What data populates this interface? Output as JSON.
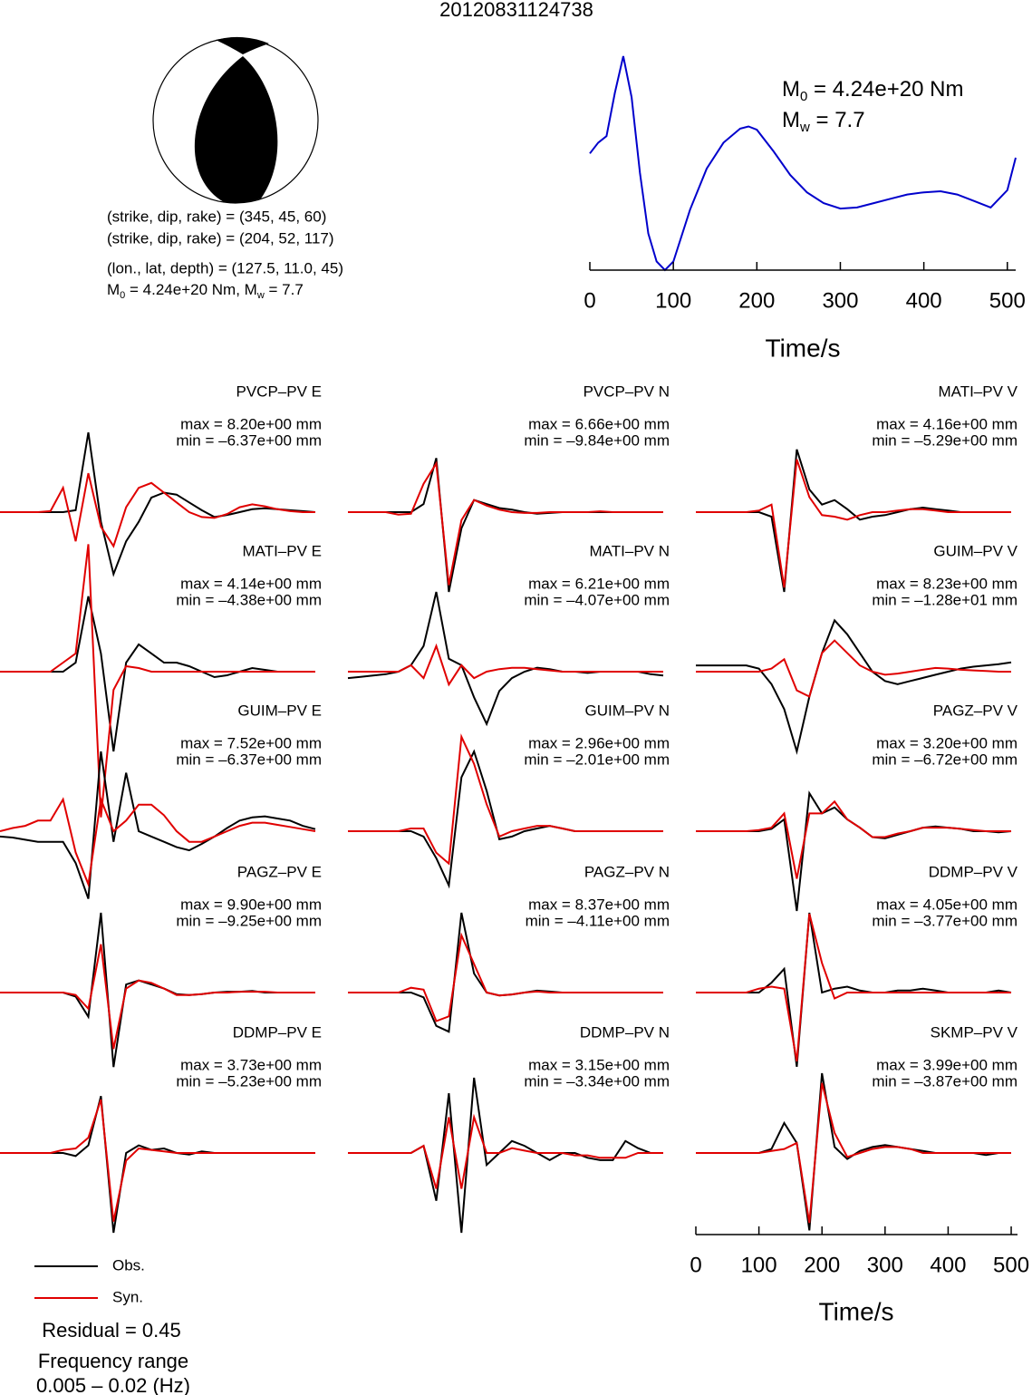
{
  "title": "20120831124738",
  "mechanism": {
    "plane1": "(strike, dip, rake) = (345, 45, 60)",
    "plane2": "(strike, dip, rake) = (204, 52, 117)",
    "location": "(lon., lat, depth) = (127.5, 11.0, 45)",
    "moment_symbol": "M",
    "moment_subscript": "0",
    "moment_value": " = 4.24e+20 Nm",
    "separator": ", ",
    "magnitude_symbol": "M",
    "magnitude_subscript": "w",
    "magnitude_value": " = 7.7"
  },
  "chart_data": [
    {
      "type": "line",
      "color": "#0000cc",
      "xlabel": "Time/s",
      "xlim": [
        0,
        510
      ],
      "xticks": [
        0,
        100,
        200,
        300,
        400,
        500
      ],
      "x": [
        0,
        10,
        20,
        30,
        40,
        50,
        60,
        70,
        80,
        90,
        100,
        120,
        140,
        160,
        180,
        190,
        200,
        220,
        240,
        260,
        280,
        300,
        320,
        340,
        360,
        380,
        400,
        420,
        440,
        460,
        480,
        500,
        510
      ],
      "values": [
        0.54,
        0.59,
        0.62,
        0.82,
        0.99,
        0.8,
        0.45,
        0.17,
        0.04,
        0,
        0.04,
        0.28,
        0.47,
        0.59,
        0.655,
        0.665,
        0.65,
        0.55,
        0.44,
        0.36,
        0.31,
        0.285,
        0.29,
        0.31,
        0.33,
        0.35,
        0.36,
        0.365,
        0.35,
        0.32,
        0.29,
        0.37,
        0.52
      ]
    },
    {
      "type": "waveform",
      "xlabel": "Time/s",
      "xlim": [
        0,
        510
      ],
      "xticks": [
        0,
        100,
        200,
        300,
        400,
        500
      ],
      "x": [
        0,
        20,
        40,
        60,
        80,
        100,
        120,
        140,
        160,
        180,
        200,
        220,
        240,
        260,
        280,
        300,
        320,
        340,
        360,
        380,
        400,
        420,
        440,
        460,
        480,
        500
      ],
      "legend": [
        {
          "name": "Obs.",
          "color": "#000000"
        },
        {
          "name": "Syn.",
          "color": "#e00000"
        }
      ],
      "residual": "Residual = 0.45",
      "frequency_title": "Frequency range",
      "frequency_range": "0.005 – 0.02 (Hz)",
      "panels": [
        {
          "station": "PVCP–PV E",
          "max_label": "max = 8.20e+00 mm",
          "min_label": "min = –6.37e+00 mm",
          "obs": [
            0,
            0,
            0,
            0,
            0,
            0,
            0.2,
            8.2,
            -1,
            -6.37,
            -3,
            -1,
            1.5,
            2,
            1.8,
            1,
            0.2,
            -0.5,
            -0.3,
            0,
            0.3,
            0.4,
            0.3,
            0.2,
            0.1,
            0
          ],
          "syn": [
            0,
            0,
            0,
            0,
            0.1,
            2.5,
            -3,
            4,
            -1.5,
            -3.5,
            0.5,
            2.5,
            3,
            2,
            1,
            0,
            -0.5,
            -0.6,
            -0.2,
            0.5,
            0.8,
            0.6,
            0.3,
            0.1,
            0,
            0
          ]
        },
        {
          "station": "MATI–PV E",
          "max_label": "max = 4.14e+00 mm",
          "min_label": "min = –4.38e+00 mm",
          "obs": [
            0,
            0,
            0,
            0,
            0,
            0,
            0.5,
            4.14,
            1,
            -4.38,
            0.5,
            1.5,
            1,
            0.5,
            0.5,
            0.3,
            0,
            -0.3,
            -0.2,
            0,
            0.2,
            0.1,
            0,
            0,
            0,
            0
          ],
          "syn": [
            0,
            0,
            0,
            0,
            0,
            0.5,
            1,
            7,
            -8,
            -1,
            0.3,
            0.2,
            0,
            0,
            0,
            0,
            0,
            0,
            0,
            0,
            0,
            0,
            0,
            0,
            0,
            0
          ]
        },
        {
          "station": "GUIM–PV E",
          "max_label": "max = 7.52e+00 mm",
          "min_label": "min = –6.37e+00 mm",
          "obs": [
            -0.5,
            -0.6,
            -0.8,
            -1,
            -1,
            -1,
            -3,
            -6.37,
            7.52,
            -1,
            5.5,
            0,
            -0.5,
            -1,
            -1.5,
            -1.8,
            -1.2,
            -0.5,
            0.3,
            1,
            1.3,
            1.4,
            1.2,
            1,
            0.5,
            0.2
          ],
          "syn": [
            0,
            0.3,
            0.5,
            1,
            1,
            3,
            -2,
            -5,
            3,
            0,
            1,
            2.5,
            2.5,
            1.5,
            0,
            -1,
            -1,
            -0.5,
            0,
            0.5,
            0.8,
            0.8,
            0.6,
            0.4,
            0.2,
            0
          ]
        },
        {
          "station": "PAGZ–PV E",
          "max_label": "max = 9.90e+00 mm",
          "min_label": "min = –9.25e+00 mm",
          "obs": [
            0,
            0,
            0,
            0,
            0,
            0,
            -0.5,
            -3,
            9.9,
            -9.25,
            1,
            1.5,
            1,
            0.5,
            -0.2,
            -0.3,
            -0.2,
            0,
            0.1,
            0.1,
            0.2,
            0,
            0,
            0,
            0,
            0
          ],
          "syn": [
            0,
            0,
            0,
            0,
            0,
            0,
            -0.3,
            -2,
            6,
            -7,
            0.5,
            1.5,
            1.2,
            0.5,
            -0.3,
            -0.3,
            -0.2,
            0,
            0,
            0.1,
            0.1,
            0.1,
            0,
            0,
            0,
            0
          ]
        },
        {
          "station": "DDMP–PV E",
          "max_label": "max = 3.73e+00 mm",
          "min_label": "min = –5.23e+00 mm",
          "obs": [
            0,
            0,
            0,
            0,
            0,
            0,
            -0.2,
            0.5,
            3.73,
            -5.23,
            0,
            0.5,
            0.2,
            0.3,
            0,
            -0.1,
            0.1,
            0,
            0,
            0,
            0,
            0,
            0,
            0,
            0,
            0
          ],
          "syn": [
            0,
            0,
            0,
            0,
            0,
            0.2,
            0.3,
            1,
            3.5,
            -4.5,
            -0.5,
            0.3,
            0.2,
            0.1,
            0,
            0,
            0,
            0,
            0,
            0,
            0,
            0,
            0,
            0,
            0,
            0
          ]
        },
        {
          "station": "PVCP–PV N",
          "max_label": "max = 6.66e+00 mm",
          "min_label": "min = –9.84e+00 mm",
          "obs": [
            0,
            0,
            0,
            0,
            0,
            0,
            1,
            6.66,
            -9.84,
            -2,
            1.5,
            1,
            0.5,
            0.3,
            0,
            -0.2,
            -0.1,
            0,
            0,
            0,
            0,
            0,
            0,
            0,
            0,
            0
          ],
          "syn": [
            0,
            0,
            0,
            0,
            -0.3,
            -0.2,
            3.5,
            6,
            -9,
            -1,
            1.5,
            0.8,
            0.3,
            0,
            -0.1,
            -0.1,
            0,
            0,
            0,
            0,
            0.1,
            0,
            0,
            0,
            0,
            0
          ]
        },
        {
          "station": "MATI–PV N",
          "max_label": "max = 6.21e+00 mm",
          "min_label": "min = –4.07e+00 mm",
          "obs": [
            -0.5,
            -0.4,
            -0.3,
            -0.2,
            0,
            0.5,
            2,
            6.21,
            1,
            0.5,
            -2,
            -4.07,
            -1.5,
            -0.5,
            0,
            0.3,
            0.2,
            0,
            0,
            -0.1,
            0,
            0,
            0,
            0,
            -0.2,
            -0.3
          ],
          "syn": [
            0,
            0,
            0,
            0,
            0,
            0.5,
            -0.5,
            2,
            -1,
            0.5,
            -0.5,
            0,
            0.2,
            0.3,
            0.3,
            0.2,
            0.1,
            0,
            0,
            0,
            0,
            0,
            0,
            0,
            0,
            0
          ]
        },
        {
          "station": "GUIM–PV N",
          "max_label": "max = 2.96e+00 mm",
          "min_label": "min = –2.01e+00 mm",
          "obs": [
            0,
            0,
            0,
            0,
            0,
            0,
            -0.2,
            -1,
            -2.01,
            2,
            2.96,
            1.5,
            -0.3,
            -0.2,
            0,
            0.1,
            0.2,
            0.1,
            0,
            0,
            0,
            0,
            0,
            0,
            0,
            0
          ],
          "syn": [
            0,
            0,
            0,
            0,
            0,
            0.1,
            0.1,
            -0.8,
            -1.2,
            3.5,
            2.5,
            1,
            -0.2,
            0,
            0.1,
            0.2,
            0.2,
            0.1,
            0,
            0,
            0,
            0,
            0,
            0,
            0,
            0
          ]
        },
        {
          "station": "PAGZ–PV N",
          "max_label": "max = 8.37e+00 mm",
          "min_label": "min = –4.11e+00 mm",
          "obs": [
            0,
            0,
            0,
            0,
            0,
            0,
            -0.5,
            -3.5,
            -4.11,
            8.37,
            2,
            0,
            -0.3,
            -0.2,
            0,
            0.2,
            0.1,
            0,
            0,
            0,
            0,
            0,
            0,
            0,
            0,
            0
          ],
          "syn": [
            0,
            0,
            0,
            0,
            0,
            0.5,
            0.3,
            -3,
            -2.5,
            6,
            3,
            0,
            -0.3,
            -0.2,
            0,
            0.1,
            0,
            0,
            0,
            0,
            0,
            0,
            0,
            0,
            0,
            0
          ]
        },
        {
          "station": "DDMP–PV N",
          "max_label": "max = 3.15e+00 mm",
          "min_label": "min = –3.34e+00 mm",
          "obs": [
            0,
            0,
            0,
            0,
            0,
            0,
            0.3,
            -2,
            2.5,
            -3.34,
            3.15,
            -0.5,
            0,
            0.5,
            0.3,
            0,
            -0.3,
            0,
            0,
            -0.2,
            -0.3,
            -0.3,
            0.5,
            0.2,
            0,
            0
          ],
          "syn": [
            0,
            0,
            0,
            0,
            0,
            0,
            0.3,
            -1.5,
            1.5,
            -1.5,
            1.5,
            0,
            0,
            0.2,
            0.1,
            0,
            0,
            0,
            -0.1,
            -0.1,
            -0.2,
            -0.2,
            -0.2,
            0,
            0,
            0
          ]
        },
        {
          "station": "MATI–PV V",
          "max_label": "max = 4.16e+00 mm",
          "min_label": "min = –5.29e+00 mm",
          "obs": [
            0,
            0,
            0,
            0,
            0,
            0,
            -0.3,
            -5.29,
            4.16,
            1.5,
            0.5,
            0.8,
            0.2,
            -0.5,
            -0.3,
            -0.2,
            0,
            0.2,
            0.3,
            0.2,
            0.1,
            0,
            0,
            0,
            0,
            0
          ],
          "syn": [
            0,
            0,
            0,
            0,
            0,
            0.1,
            0.5,
            -5,
            3.5,
            1,
            -0.2,
            -0.3,
            -0.5,
            -0.2,
            0,
            0,
            0.1,
            0.2,
            0.2,
            0.1,
            0,
            0,
            0,
            0,
            0,
            0
          ]
        },
        {
          "station": "GUIM–PV V",
          "max_label": "max = 8.23e+00 mm",
          "min_label": "min = –1.28e+01 mm",
          "obs": [
            1,
            1,
            1,
            1,
            1,
            0.5,
            -2,
            -6,
            -12.8,
            -4,
            3,
            8.23,
            6,
            3,
            0,
            -1.5,
            -2,
            -1.5,
            -1,
            -0.5,
            0,
            0.5,
            0.8,
            1,
            1.2,
            1.5
          ],
          "syn": [
            0,
            0,
            0,
            0,
            0,
            0,
            0.5,
            2,
            -3,
            -4,
            3,
            5,
            3,
            1,
            0,
            -0.5,
            -0.3,
            0,
            0.3,
            0.6,
            0.5,
            0.3,
            0.2,
            0.1,
            0,
            0
          ]
        },
        {
          "station": "PAGZ–PV V",
          "max_label": "max = 3.20e+00 mm",
          "min_label": "min = –6.72e+00 mm",
          "obs": [
            0,
            0,
            0,
            0,
            0,
            0,
            0.2,
            1,
            -6.72,
            3.2,
            1.5,
            2,
            1,
            0.3,
            -0.5,
            -0.6,
            -0.3,
            0,
            0.3,
            0.4,
            0.3,
            0.2,
            0,
            0,
            -0.1,
            0
          ],
          "syn": [
            0,
            0,
            0,
            0,
            0,
            0.1,
            0.3,
            1.5,
            -4,
            1.5,
            1.5,
            2.5,
            1,
            0.3,
            -0.5,
            -0.5,
            -0.2,
            0,
            0.3,
            0.3,
            0.3,
            0.2,
            0.1,
            0,
            0,
            0
          ]
        },
        {
          "station": "DDMP–PV V",
          "max_label": "max = 4.05e+00 mm",
          "min_label": "min = –3.77e+00 mm",
          "obs": [
            0,
            0,
            0,
            0,
            0,
            0,
            0.5,
            1.2,
            -3.77,
            4.05,
            0,
            0.2,
            0.3,
            0.1,
            0,
            0,
            0.1,
            0.1,
            0.2,
            0.1,
            0,
            0,
            0,
            0,
            0.1,
            0
          ],
          "syn": [
            0,
            0,
            0,
            0,
            0,
            0.2,
            0.3,
            0.2,
            -3.5,
            4,
            1.5,
            -0.3,
            0,
            0,
            0,
            0,
            0,
            0,
            0,
            0,
            0,
            0,
            0,
            0,
            0,
            0
          ]
        },
        {
          "station": "SKMP–PV V",
          "max_label": "max = 3.99e+00 mm",
          "min_label": "min = –3.87e+00 mm",
          "obs": [
            0,
            0,
            0,
            0,
            0,
            0,
            0.2,
            1.5,
            0.5,
            -3.87,
            3.99,
            0.3,
            -0.3,
            0.1,
            0.3,
            0.4,
            0.3,
            0.2,
            0.1,
            0,
            0,
            0,
            0,
            -0.1,
            0,
            0
          ],
          "syn": [
            0,
            0,
            0,
            0,
            0,
            0,
            0.1,
            0.2,
            0.5,
            -3.5,
            3.5,
            1,
            -0.2,
            0,
            0.2,
            0.3,
            0.3,
            0.2,
            0,
            0,
            0,
            0,
            0,
            0,
            0,
            0
          ]
        }
      ]
    }
  ]
}
